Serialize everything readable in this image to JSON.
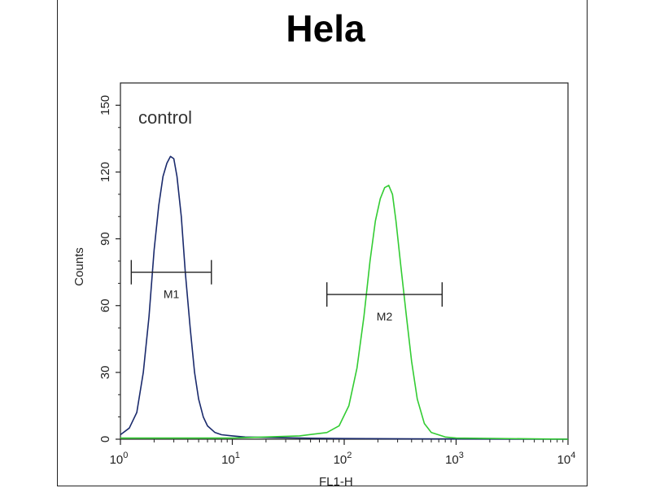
{
  "chart_data": {
    "type": "line",
    "title": "Hela",
    "xlabel": "FL1-H",
    "ylabel": "Counts",
    "x_scale": "log",
    "xlim": [
      1,
      10000
    ],
    "ylim": [
      0,
      160
    ],
    "y_ticks": [
      "0",
      "30",
      "60",
      "90",
      "120",
      "150"
    ],
    "x_ticks": [
      {
        "base": "10",
        "exp": "0"
      },
      {
        "base": "10",
        "exp": "1"
      },
      {
        "base": "10",
        "exp": "2"
      },
      {
        "base": "10",
        "exp": "3"
      },
      {
        "base": "10",
        "exp": "4"
      }
    ],
    "annotation": "control",
    "series": [
      {
        "color": "#1a2a6c",
        "x": [
          1,
          1.2,
          1.4,
          1.6,
          1.8,
          2.0,
          2.2,
          2.4,
          2.6,
          2.8,
          3.0,
          3.2,
          3.5,
          3.8,
          4.2,
          4.6,
          5.0,
          5.5,
          6.0,
          7.0,
          8.0,
          10,
          13,
          20,
          40,
          100,
          1000,
          10000
        ],
        "y": [
          2,
          5,
          12,
          30,
          55,
          85,
          105,
          118,
          124,
          127,
          126,
          118,
          100,
          75,
          50,
          30,
          18,
          10,
          6,
          3,
          2,
          1.5,
          1,
          0.8,
          0.5,
          0.3,
          0.1,
          0
        ]
      },
      {
        "color": "#33cc33",
        "x": [
          1,
          10,
          40,
          70,
          90,
          110,
          130,
          150,
          170,
          190,
          210,
          230,
          250,
          270,
          290,
          320,
          360,
          400,
          450,
          520,
          600,
          800,
          1000,
          10000
        ],
        "y": [
          0.5,
          0.5,
          1.5,
          3,
          6,
          15,
          32,
          55,
          80,
          98,
          108,
          113,
          114,
          110,
          98,
          78,
          55,
          35,
          18,
          7,
          3,
          1,
          0.5,
          0
        ]
      }
    ],
    "markers": [
      {
        "label": "M1",
        "x_start": 1.25,
        "x_end": 6.5,
        "y": 75
      },
      {
        "label": "M2",
        "x_start": 70,
        "x_end": 750,
        "y": 65
      }
    ]
  }
}
